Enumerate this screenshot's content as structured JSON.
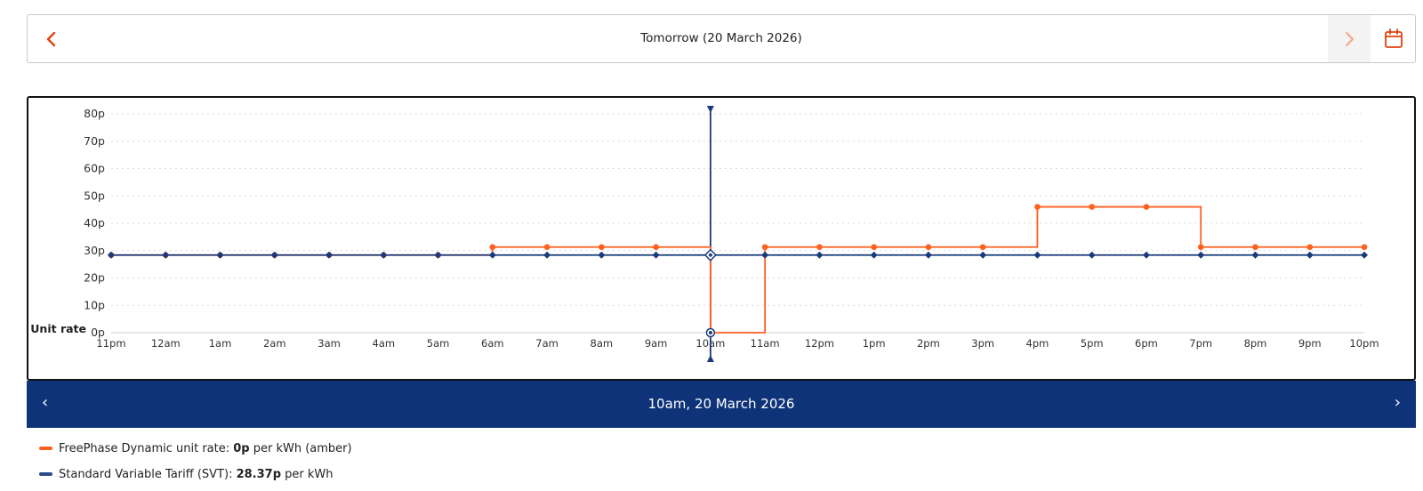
{
  "date_nav": {
    "title": "Tomorrow (20 March 2026)",
    "prev_icon": "chevron-left-icon",
    "next_icon": "chevron-right-icon",
    "calendar_icon": "calendar-icon"
  },
  "chart_data": {
    "type": "line",
    "step": true,
    "ylabel": "Unit rate",
    "ylim": [
      0,
      80
    ],
    "y_ticks": [
      "0p",
      "10p",
      "20p",
      "30p",
      "40p",
      "50p",
      "60p",
      "70p",
      "80p"
    ],
    "categories": [
      "11pm",
      "12am",
      "1am",
      "2am",
      "3am",
      "4am",
      "5am",
      "6am",
      "7am",
      "8am",
      "9am",
      "10am",
      "11am",
      "12pm",
      "1pm",
      "2pm",
      "3pm",
      "4pm",
      "5pm",
      "6pm",
      "7pm",
      "8pm",
      "9pm",
      "10pm"
    ],
    "grid": true,
    "selected_category": "10am",
    "series": [
      {
        "name": "FreePhase Dynamic",
        "color": "#ff5f1f",
        "values": [
          28.37,
          28.37,
          28.37,
          28.37,
          28.37,
          28.37,
          28.37,
          31.3,
          31.3,
          31.3,
          31.3,
          0,
          31.3,
          31.3,
          31.3,
          31.3,
          31.3,
          46.0,
          46.0,
          46.0,
          31.3,
          31.3,
          31.3,
          31.3
        ]
      },
      {
        "name": "Standard Variable Tariff (SVT)",
        "color": "#1a3a7c",
        "values": [
          28.37,
          28.37,
          28.37,
          28.37,
          28.37,
          28.37,
          28.37,
          28.37,
          28.37,
          28.37,
          28.37,
          28.37,
          28.37,
          28.37,
          28.37,
          28.37,
          28.37,
          28.37,
          28.37,
          28.37,
          28.37,
          28.37,
          28.37,
          28.37
        ]
      }
    ]
  },
  "detail": {
    "title": "10am, 20 March 2026",
    "prev_label": "‹",
    "next_label": "›",
    "rows": [
      {
        "color": "#ff5f1f",
        "label": "FreePhase Dynamic unit rate: ",
        "value": "0p",
        "suffix": " per kWh (amber)"
      },
      {
        "color": "#2a4a8a",
        "label": "Standard Variable Tariff (SVT): ",
        "value": "28.37p",
        "suffix": " per kWh"
      }
    ]
  }
}
